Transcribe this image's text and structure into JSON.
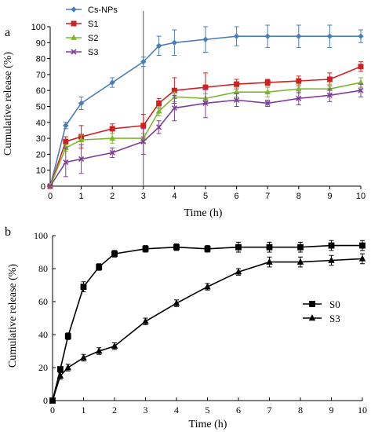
{
  "panels": {
    "a": {
      "label": "a",
      "ylabel": "Cumulative release (%)",
      "xlabel": "Time (h)",
      "legend_position": "top-left"
    },
    "b": {
      "label": "b",
      "ylabel": "Cumulative release (%)",
      "xlabel": "Time (h)",
      "legend_position": "right"
    }
  },
  "chart_data": [
    {
      "type": "line",
      "panel": "a",
      "xlabel": "Time (h)",
      "ylabel": "Cumulative release (%)",
      "xlim": [
        0,
        10
      ],
      "ylim": [
        0,
        100
      ],
      "xticks": [
        0,
        1,
        2,
        3,
        4,
        5,
        6,
        7,
        8,
        9,
        10
      ],
      "yticks": [
        0,
        10,
        20,
        30,
        40,
        50,
        60,
        70,
        80,
        90,
        100
      ],
      "grid": false,
      "legend": "top-left",
      "annotations": [
        {
          "type": "vertical_line",
          "x": 3
        }
      ],
      "x": [
        0,
        0.5,
        1,
        2,
        3,
        3.5,
        4,
        5,
        6,
        7,
        8,
        9,
        10
      ],
      "series": [
        {
          "name": "Cs-NPs",
          "color": "#4a7ebb",
          "marker": "diamond",
          "values": [
            0,
            38,
            52,
            65,
            78,
            88,
            90,
            92,
            94,
            94,
            94,
            94,
            94
          ],
          "errors": [
            0,
            2,
            4,
            3,
            3,
            6,
            8,
            8,
            6,
            7,
            7,
            7,
            4
          ]
        },
        {
          "name": "S1",
          "color": "#cc2222",
          "marker": "square",
          "values": [
            0,
            28,
            31,
            36,
            38,
            52,
            60,
            62,
            64,
            65,
            66,
            67,
            75
          ],
          "errors": [
            0,
            3,
            7,
            3,
            7,
            3,
            8,
            9,
            3,
            2,
            3,
            4,
            3
          ]
        },
        {
          "name": "S2",
          "color": "#7cb82f",
          "marker": "triangle",
          "values": [
            0,
            24,
            29,
            30,
            30,
            47,
            56,
            55,
            59,
            59,
            61,
            61,
            65
          ],
          "errors": [
            0,
            2,
            3,
            3,
            3,
            3,
            3,
            3,
            3,
            3,
            3,
            3,
            3
          ]
        },
        {
          "name": "S3",
          "color": "#7e3f98",
          "marker": "x",
          "values": [
            0,
            15,
            17,
            21,
            28,
            37,
            49,
            52,
            54,
            52,
            55,
            57,
            60
          ],
          "errors": [
            0,
            9,
            9,
            3,
            8,
            4,
            8,
            9,
            4,
            2,
            4,
            4,
            4
          ]
        }
      ]
    },
    {
      "type": "line",
      "panel": "b",
      "xlabel": "Time (h)",
      "ylabel": "Cumulative release (%)",
      "xlim": [
        0,
        10
      ],
      "ylim": [
        0,
        100
      ],
      "xticks": [
        0,
        1,
        2,
        3,
        4,
        5,
        6,
        7,
        8,
        9,
        10
      ],
      "yticks": [
        0,
        20,
        40,
        60,
        80,
        100
      ],
      "grid": false,
      "legend": "right",
      "series": [
        {
          "name": "S0",
          "color": "#000000",
          "marker": "square",
          "x": [
            0,
            0.25,
            0.5,
            1,
            1.5,
            2,
            3,
            4,
            5,
            6,
            7,
            8,
            9,
            10
          ],
          "values": [
            0,
            19,
            39,
            69,
            81,
            89,
            92,
            93,
            92,
            93,
            93,
            93,
            94,
            94
          ],
          "errors": [
            0,
            1,
            2,
            3,
            2,
            2,
            2,
            2,
            2,
            3,
            3,
            3,
            3,
            3
          ]
        },
        {
          "name": "S3",
          "color": "#000000",
          "marker": "triangle",
          "x": [
            0,
            0.25,
            0.5,
            1,
            1.5,
            2,
            3,
            4,
            5,
            6,
            7,
            8,
            9,
            10
          ],
          "values": [
            0,
            15,
            20,
            26,
            30,
            33,
            48,
            59,
            69,
            78,
            84,
            84,
            85,
            86
          ],
          "errors": [
            0,
            2,
            2,
            2,
            2,
            2,
            2,
            2,
            2,
            2,
            3,
            3,
            3,
            3
          ]
        }
      ]
    }
  ]
}
